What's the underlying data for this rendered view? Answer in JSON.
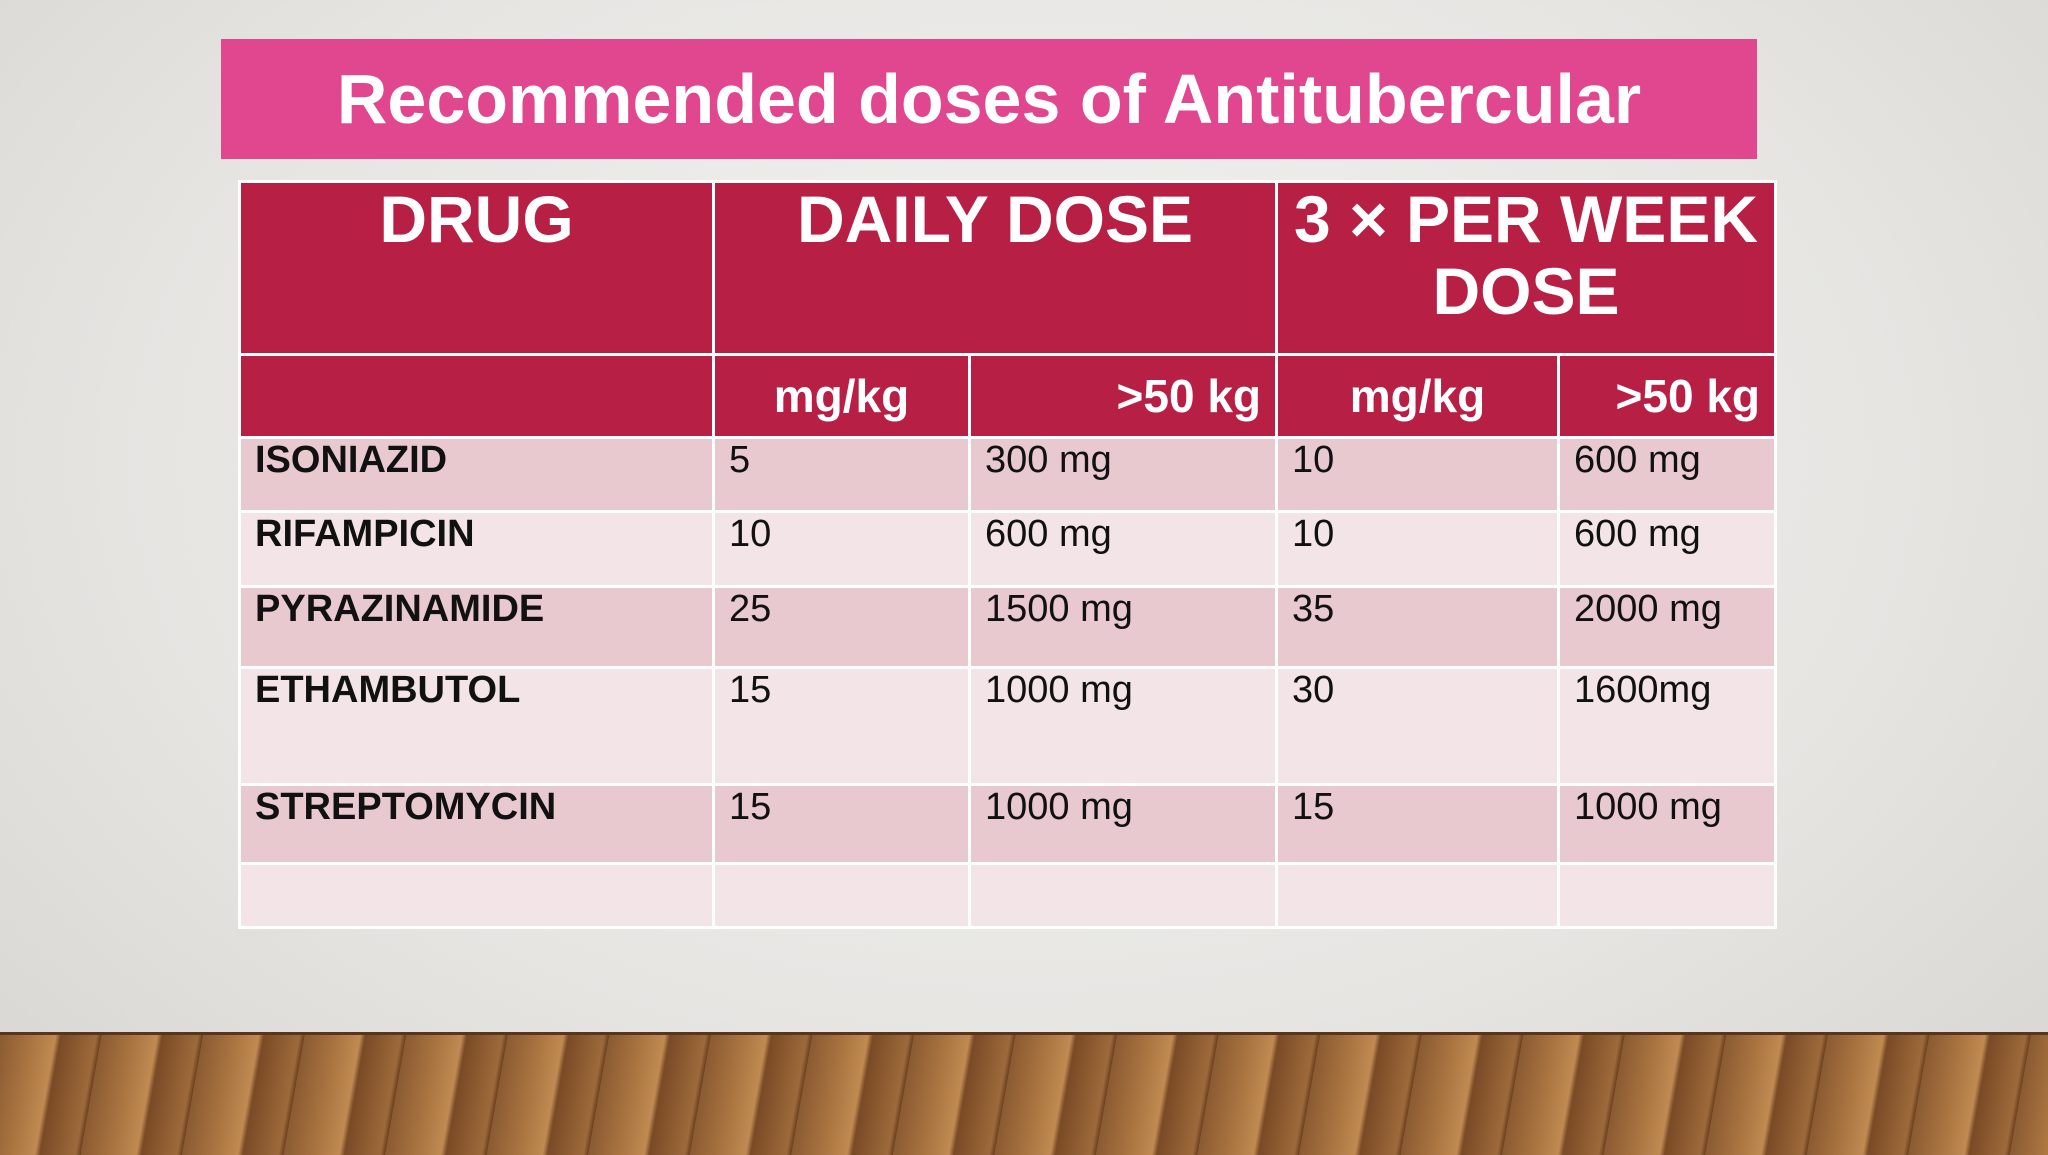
{
  "title": "Recommended doses of Antitubercular",
  "table": {
    "header": [
      "DRUG",
      "DAILY DOSE",
      "3 × PER WEEK DOSE"
    ],
    "subheader": [
      "mg/kg",
      ">50 kg",
      "mg/kg",
      ">50 kg"
    ],
    "rows": [
      [
        "ISONIAZID",
        "5",
        "300  mg",
        "10",
        "600 mg"
      ],
      [
        "RIFAMPICIN",
        "10",
        "600 mg",
        "10",
        "600 mg"
      ],
      [
        "PYRAZINAMIDE",
        "25",
        "1500 mg",
        "35",
        "2000 mg"
      ],
      [
        "ETHAMBUTOL",
        "15",
        "1000 mg",
        "30",
        "1600mg"
      ],
      [
        "STREPTOMYCIN",
        "15",
        "1000 mg",
        "15",
        "1000 mg"
      ]
    ]
  }
}
